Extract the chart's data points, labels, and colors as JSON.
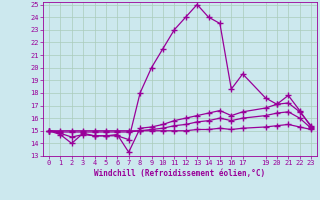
{
  "xlabel": "Windchill (Refroidissement éolien,°C)",
  "xlim": [
    -0.5,
    23.5
  ],
  "ylim": [
    13,
    25.2
  ],
  "yticks": [
    13,
    14,
    15,
    16,
    17,
    18,
    19,
    20,
    21,
    22,
    23,
    24,
    25
  ],
  "xticks": [
    0,
    1,
    2,
    3,
    4,
    5,
    6,
    7,
    8,
    9,
    10,
    11,
    12,
    13,
    14,
    15,
    16,
    17,
    19,
    20,
    21,
    22,
    23
  ],
  "bg_color": "#cce8ee",
  "grid_color": "#aaccbb",
  "line_color": "#990099",
  "line_width": 0.9,
  "marker": "+",
  "marker_size": 4,
  "series": [
    [
      15.0,
      14.7,
      14.0,
      14.8,
      14.6,
      14.6,
      14.6,
      14.3,
      18.0,
      20.0,
      21.5,
      23.0,
      24.0,
      25.0,
      24.0,
      23.5,
      18.3,
      19.5,
      17.6,
      17.1,
      17.8,
      16.6,
      15.3
    ],
    [
      15.0,
      14.8,
      14.5,
      14.7,
      14.6,
      14.6,
      14.7,
      13.3,
      15.2,
      15.3,
      15.5,
      15.8,
      16.0,
      16.2,
      16.4,
      16.6,
      16.2,
      16.5,
      16.8,
      17.1,
      17.2,
      16.5,
      15.4
    ],
    [
      15.0,
      14.9,
      14.9,
      14.9,
      14.9,
      14.9,
      14.9,
      14.9,
      15.0,
      15.1,
      15.2,
      15.4,
      15.5,
      15.7,
      15.8,
      16.0,
      15.8,
      16.0,
      16.2,
      16.4,
      16.5,
      16.0,
      15.2
    ],
    [
      15.0,
      15.0,
      15.0,
      15.0,
      15.0,
      15.0,
      15.0,
      15.0,
      15.0,
      15.0,
      15.0,
      15.0,
      15.0,
      15.1,
      15.1,
      15.2,
      15.1,
      15.2,
      15.3,
      15.4,
      15.5,
      15.3,
      15.1
    ]
  ],
  "x_vals": [
    0,
    1,
    2,
    3,
    4,
    5,
    6,
    7,
    8,
    9,
    10,
    11,
    12,
    13,
    14,
    15,
    16,
    17,
    19,
    20,
    21,
    22,
    23
  ]
}
